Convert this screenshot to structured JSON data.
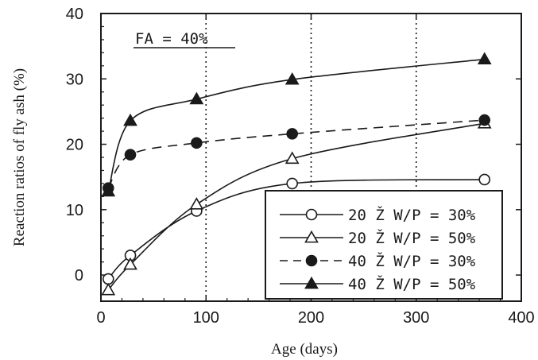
{
  "chart_data": {
    "type": "line",
    "xlabel": "Age (days)",
    "ylabel": "Reaction ratios of fly ash (%)",
    "xlim": [
      0,
      400
    ],
    "ylim": [
      -4,
      40
    ],
    "xticks": [
      0,
      100,
      200,
      300,
      400
    ],
    "yticks": [
      0,
      10,
      20,
      30,
      40
    ],
    "ytick_labels": [
      "0",
      "10",
      "20",
      "30",
      "40"
    ],
    "xtick_labels": [
      "0",
      "100",
      "200",
      "300",
      "400"
    ],
    "vertical_dotted_lines": [
      100,
      200,
      300
    ],
    "annotation": "FA = 40%",
    "legend_placement": "bottom-right",
    "series": [
      {
        "name": "20 Ž W/P = 30%",
        "marker": "circle-open",
        "line": "solid",
        "x": [
          7,
          28,
          91,
          182,
          365
        ],
        "y": [
          -0.6,
          3.0,
          9.8,
          14.0,
          14.6
        ]
      },
      {
        "name": "20 Ž W/P = 50%",
        "marker": "triangle-open",
        "line": "solid",
        "x": [
          7,
          28,
          91,
          182,
          365
        ],
        "y": [
          -2.3,
          1.6,
          10.8,
          17.8,
          23.2
        ]
      },
      {
        "name": "40 Ž W/P = 30%",
        "marker": "circle-filled",
        "line": "dashed",
        "x": [
          7,
          28,
          91,
          182,
          365
        ],
        "y": [
          13.3,
          18.4,
          20.2,
          21.6,
          23.7
        ]
      },
      {
        "name": "40 Ž W/P = 50%",
        "marker": "triangle-filled",
        "line": "solid",
        "x": [
          7,
          28,
          91,
          182,
          365
        ],
        "y": [
          12.8,
          23.6,
          26.9,
          29.9,
          33.0
        ]
      }
    ]
  }
}
